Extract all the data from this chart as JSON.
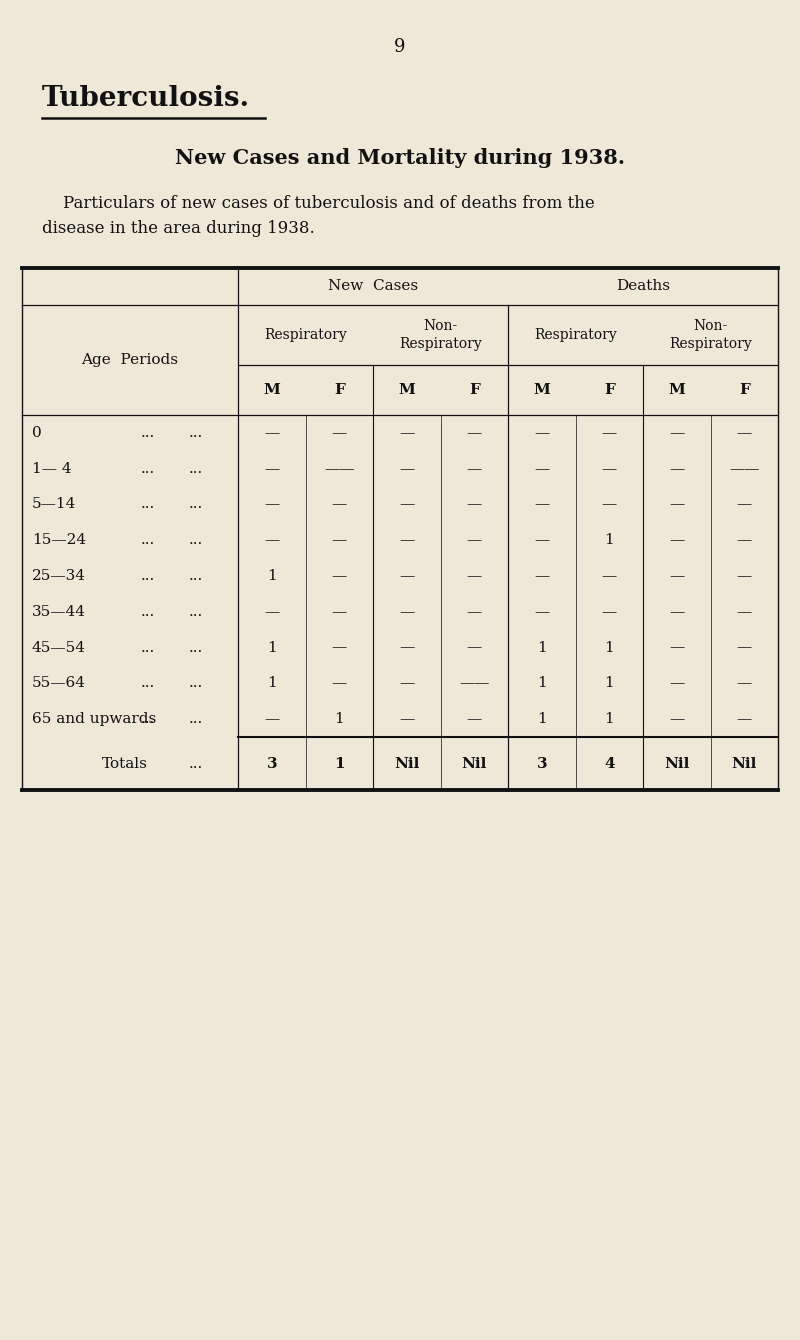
{
  "page_number": "9",
  "title": "Tuberculosis.",
  "subtitle": "New Cases and Mortality during 1938.",
  "description_line1": "    Particulars of new cases of tuberculosis and of deaths from the",
  "description_line2": "disease in the area during 1938.",
  "bg_color": "#ede8d8",
  "text_color": "#111111",
  "col_header_1": "New  Cases",
  "col_header_2": "Deaths",
  "sub_header_resp": "Respiratory",
  "sub_header_nonresp": "Non-\nRespiratory",
  "mf_labels": [
    "M",
    "F",
    "M",
    "F",
    "M",
    "F",
    "M",
    "F"
  ],
  "age_periods": [
    "0",
    "1— 4",
    "5—14",
    "15—24",
    "25—34",
    "35—44",
    "45—54",
    "55—64",
    "65 and upwards"
  ],
  "table_data": [
    [
      "—",
      "—",
      "—",
      "—",
      "—",
      "—",
      "—",
      "—"
    ],
    [
      "—",
      "——",
      "—",
      "—",
      "—",
      "—",
      "—",
      "——"
    ],
    [
      "—",
      "—",
      "—",
      "—",
      "—",
      "—",
      "—",
      "—"
    ],
    [
      "—",
      "—",
      "—",
      "—",
      "—",
      "1",
      "—",
      "—"
    ],
    [
      "1",
      "—",
      "—",
      "—",
      "—",
      "—",
      "—",
      "—"
    ],
    [
      "—",
      "—",
      "—",
      "—",
      "—",
      "—",
      "—",
      "—"
    ],
    [
      "1",
      "—",
      "—",
      "—",
      "1",
      "1",
      "—",
      "—"
    ],
    [
      "1",
      "—",
      "—",
      "——",
      "1",
      "1",
      "—",
      "—"
    ],
    [
      "—",
      "1",
      "—",
      "—",
      "1",
      "1",
      "—",
      "—"
    ]
  ],
  "totals_label": "Totals",
  "totals_data": [
    "3",
    "1",
    "Nil",
    "Nil",
    "3",
    "4",
    "Nil",
    "Nil"
  ]
}
